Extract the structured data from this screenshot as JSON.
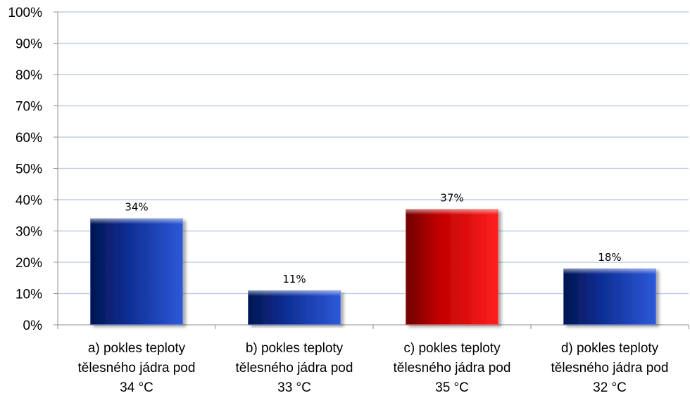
{
  "chart_data": {
    "type": "bar",
    "title": "",
    "xlabel": "",
    "ylabel": "",
    "categories": [
      [
        "a) pokles teploty",
        "tělesného jádra pod",
        "34 °C"
      ],
      [
        "b) pokles teploty",
        "tělesného jádra pod",
        "33 °C"
      ],
      [
        "c) pokles teploty",
        "tělesného jádra pod",
        "35 °C"
      ],
      [
        "d) pokles teploty",
        "tělesného jádra pod",
        "32 °C"
      ]
    ],
    "values": [
      34,
      11,
      37,
      18
    ],
    "data_labels": [
      "34%",
      "11%",
      "37%",
      "18%"
    ],
    "y_ticks": [
      "0%",
      "10%",
      "20%",
      "30%",
      "40%",
      "50%",
      "60%",
      "70%",
      "80%",
      "90%",
      "100%"
    ],
    "ylim": [
      0,
      100
    ],
    "grid": true,
    "legend": "none",
    "highlight_index": 2,
    "colors": {
      "bar": "#0a2a8c",
      "bar_light": "#2e59d9",
      "bar_dark": "#04164f",
      "highlight": "#c00000",
      "highlight_light": "#ff2020",
      "highlight_dark": "#6e0000",
      "grid": "#bcd0e6",
      "axis": "#8c8c8c"
    }
  }
}
